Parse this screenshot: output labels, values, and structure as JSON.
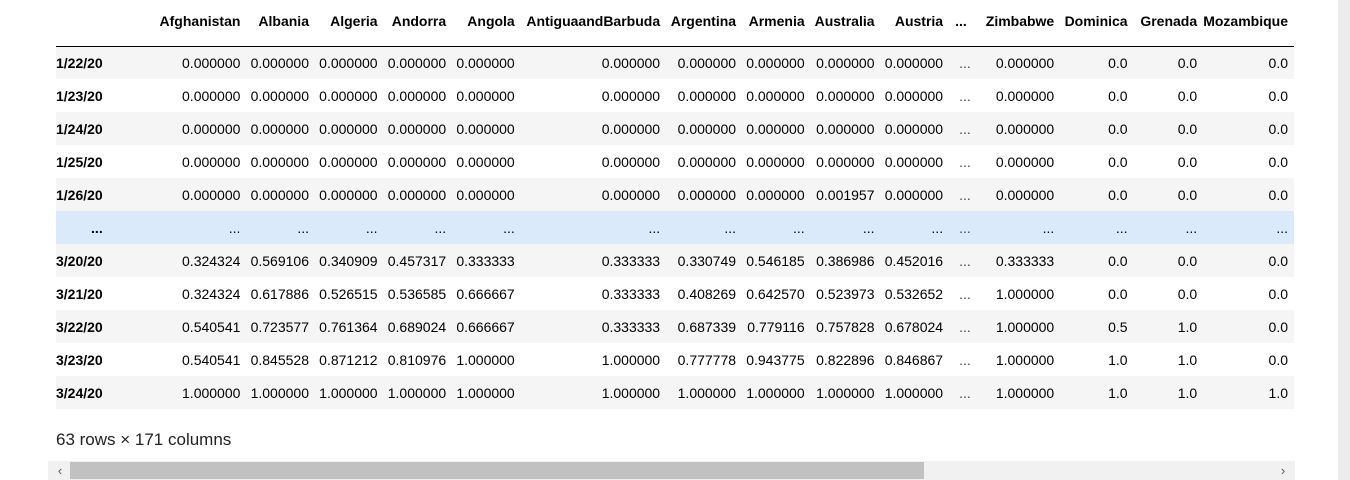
{
  "columns": [
    {
      "name": "Afghanistan",
      "w": 160
    },
    {
      "name": "Albania",
      "w": 75
    },
    {
      "name": "Algeria",
      "w": 75
    },
    {
      "name": "Andorra",
      "w": 75
    },
    {
      "name": "Angola",
      "w": 75
    },
    {
      "name": "AntiguaandBarbuda",
      "w": 154
    },
    {
      "name": "Argentina",
      "w": 83
    },
    {
      "name": "Armenia",
      "w": 75
    },
    {
      "name": "Australia",
      "w": 76
    },
    {
      "name": "Austria",
      "w": 75
    },
    {
      "name": "...",
      "w": 28,
      "dots": true
    },
    {
      "name": "Zimbabwe",
      "w": 97
    },
    {
      "name": "Dominica",
      "w": 80
    },
    {
      "name": "Grenada",
      "w": 80
    },
    {
      "name": "Mozambique",
      "w": 70
    }
  ],
  "rows": [
    {
      "index": "1/22/20",
      "values": [
        "0.000000",
        "0.000000",
        "0.000000",
        "0.000000",
        "0.000000",
        "0.000000",
        "0.000000",
        "0.000000",
        "0.000000",
        "0.000000",
        "...",
        "0.000000",
        "0.0",
        "0.0",
        "0.0"
      ]
    },
    {
      "index": "1/23/20",
      "values": [
        "0.000000",
        "0.000000",
        "0.000000",
        "0.000000",
        "0.000000",
        "0.000000",
        "0.000000",
        "0.000000",
        "0.000000",
        "0.000000",
        "...",
        "0.000000",
        "0.0",
        "0.0",
        "0.0"
      ]
    },
    {
      "index": "1/24/20",
      "values": [
        "0.000000",
        "0.000000",
        "0.000000",
        "0.000000",
        "0.000000",
        "0.000000",
        "0.000000",
        "0.000000",
        "0.000000",
        "0.000000",
        "...",
        "0.000000",
        "0.0",
        "0.0",
        "0.0"
      ]
    },
    {
      "index": "1/25/20",
      "values": [
        "0.000000",
        "0.000000",
        "0.000000",
        "0.000000",
        "0.000000",
        "0.000000",
        "0.000000",
        "0.000000",
        "0.000000",
        "0.000000",
        "...",
        "0.000000",
        "0.0",
        "0.0",
        "0.0"
      ]
    },
    {
      "index": "1/26/20",
      "values": [
        "0.000000",
        "0.000000",
        "0.000000",
        "0.000000",
        "0.000000",
        "0.000000",
        "0.000000",
        "0.000000",
        "0.001957",
        "0.000000",
        "...",
        "0.000000",
        "0.0",
        "0.0",
        "0.0"
      ]
    },
    {
      "index": "...",
      "ellipsis": true,
      "values": [
        "...",
        "...",
        "...",
        "...",
        "...",
        "...",
        "...",
        "...",
        "...",
        "...",
        "...",
        "...",
        "...",
        "...",
        "..."
      ]
    },
    {
      "index": "3/20/20",
      "values": [
        "0.324324",
        "0.569106",
        "0.340909",
        "0.457317",
        "0.333333",
        "0.333333",
        "0.330749",
        "0.546185",
        "0.386986",
        "0.452016",
        "...",
        "0.333333",
        "0.0",
        "0.0",
        "0.0"
      ]
    },
    {
      "index": "3/21/20",
      "values": [
        "0.324324",
        "0.617886",
        "0.526515",
        "0.536585",
        "0.666667",
        "0.333333",
        "0.408269",
        "0.642570",
        "0.523973",
        "0.532652",
        "...",
        "1.000000",
        "0.0",
        "0.0",
        "0.0"
      ]
    },
    {
      "index": "3/22/20",
      "values": [
        "0.540541",
        "0.723577",
        "0.761364",
        "0.689024",
        "0.666667",
        "0.333333",
        "0.687339",
        "0.779116",
        "0.757828",
        "0.678024",
        "...",
        "1.000000",
        "0.5",
        "1.0",
        "0.0"
      ]
    },
    {
      "index": "3/23/20",
      "values": [
        "0.540541",
        "0.845528",
        "0.871212",
        "0.810976",
        "1.000000",
        "1.000000",
        "0.777778",
        "0.943775",
        "0.822896",
        "0.846867",
        "...",
        "1.000000",
        "1.0",
        "1.0",
        "0.0"
      ]
    },
    {
      "index": "3/24/20",
      "values": [
        "1.000000",
        "1.000000",
        "1.000000",
        "1.000000",
        "1.000000",
        "1.000000",
        "1.000000",
        "1.000000",
        "1.000000",
        "1.000000",
        "...",
        "1.000000",
        "1.0",
        "1.0",
        "1.0"
      ]
    }
  ],
  "summary": "63 rows × 171 columns",
  "scrollbar": {
    "left_arrow": "‹",
    "right_arrow": "›",
    "thumb_fraction": 0.71
  },
  "colors": {
    "stripe": "#f5f5f5",
    "hover_row": "#dbeafa",
    "scroll_track": "#f1f1f1",
    "scroll_thumb": "#c1c1c1"
  }
}
